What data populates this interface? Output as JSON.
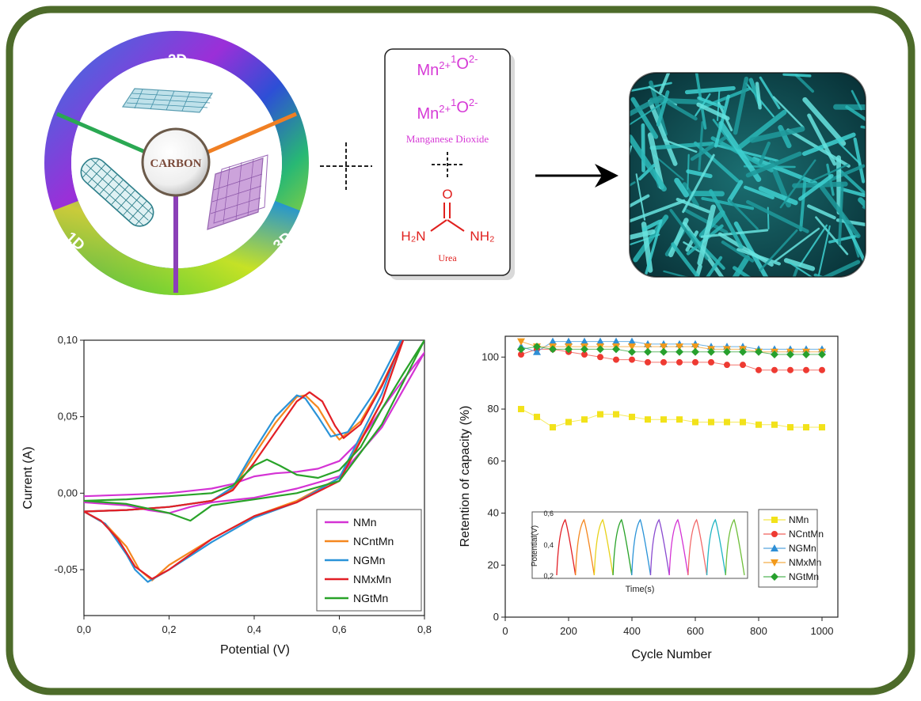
{
  "carbon_wheel": {
    "center_label": "CARBON",
    "segment_labels": [
      "2D",
      "1D",
      "3D"
    ]
  },
  "reagent_box": {
    "line1": {
      "base1": "Mn",
      "sup1": "2+",
      "pre2": "1",
      "base2": "O",
      "sup2": "2-"
    },
    "line2": {
      "base1": "Mn",
      "sup1": "2+",
      "pre2": "1",
      "base2": "O",
      "sup2": "2-"
    },
    "caption_mno2": "Manganese Dioxide",
    "urea": {
      "o": "O",
      "c": "C",
      "nh2_left": "H₂N",
      "nh2_right": "NH₂",
      "caption": "Urea"
    },
    "colors": {
      "mn": "#d63ad6",
      "urea": "#e0201e"
    }
  },
  "chart_data": [
    {
      "type": "line",
      "xlabel": "Potential (V)",
      "ylabel": "Current (A)",
      "xlim": [
        0.0,
        0.8
      ],
      "ylim": [
        -0.08,
        0.1
      ],
      "xticks": [
        "0,0",
        "0,2",
        "0,4",
        "0,6",
        "0,8"
      ],
      "yticks": [
        "-0,05",
        "0,00",
        "0,05",
        "0,10"
      ],
      "legend_position": "bottom-right",
      "series": [
        {
          "name": "NMn",
          "color": "#d433d4",
          "forward": [
            [
              0.0,
              -0.002
            ],
            [
              0.1,
              -0.001
            ],
            [
              0.2,
              0.0
            ],
            [
              0.3,
              0.003
            ],
            [
              0.35,
              0.006
            ],
            [
              0.4,
              0.011
            ],
            [
              0.45,
              0.013
            ],
            [
              0.5,
              0.014
            ],
            [
              0.55,
              0.016
            ],
            [
              0.6,
              0.021
            ],
            [
              0.65,
              0.035
            ],
            [
              0.7,
              0.055
            ],
            [
              0.75,
              0.074
            ],
            [
              0.8,
              0.092
            ]
          ],
          "reverse": [
            [
              0.8,
              0.092
            ],
            [
              0.7,
              0.043
            ],
            [
              0.6,
              0.011
            ],
            [
              0.5,
              0.003
            ],
            [
              0.4,
              -0.003
            ],
            [
              0.3,
              -0.006
            ],
            [
              0.25,
              -0.009
            ],
            [
              0.2,
              -0.013
            ],
            [
              0.15,
              -0.011
            ],
            [
              0.1,
              -0.008
            ],
            [
              0.0,
              -0.006
            ]
          ]
        },
        {
          "name": "NCntMn",
          "color": "#f5871f",
          "forward": [
            [
              0.0,
              -0.012
            ],
            [
              0.1,
              -0.011
            ],
            [
              0.2,
              -0.009
            ],
            [
              0.3,
              -0.005
            ],
            [
              0.35,
              0.003
            ],
            [
              0.4,
              0.025
            ],
            [
              0.45,
              0.046
            ],
            [
              0.5,
              0.063
            ],
            [
              0.52,
              0.064
            ],
            [
              0.55,
              0.056
            ],
            [
              0.58,
              0.042
            ],
            [
              0.6,
              0.035
            ],
            [
              0.65,
              0.047
            ],
            [
              0.7,
              0.071
            ],
            [
              0.75,
              0.1
            ]
          ],
          "reverse": [
            [
              0.75,
              0.1
            ],
            [
              0.7,
              0.06
            ],
            [
              0.6,
              0.01
            ],
            [
              0.5,
              -0.005
            ],
            [
              0.4,
              -0.015
            ],
            [
              0.3,
              -0.03
            ],
            [
              0.2,
              -0.047
            ],
            [
              0.16,
              -0.057
            ],
            [
              0.13,
              -0.05
            ],
            [
              0.1,
              -0.035
            ],
            [
              0.05,
              -0.02
            ],
            [
              0.0,
              -0.012
            ]
          ]
        },
        {
          "name": "NGMn",
          "color": "#2a93d8",
          "forward": [
            [
              0.0,
              -0.012
            ],
            [
              0.1,
              -0.011
            ],
            [
              0.2,
              -0.009
            ],
            [
              0.3,
              -0.005
            ],
            [
              0.35,
              0.004
            ],
            [
              0.4,
              0.028
            ],
            [
              0.45,
              0.05
            ],
            [
              0.5,
              0.064
            ],
            [
              0.52,
              0.062
            ],
            [
              0.55,
              0.05
            ],
            [
              0.58,
              0.037
            ],
            [
              0.62,
              0.04
            ],
            [
              0.68,
              0.065
            ],
            [
              0.75,
              0.103
            ]
          ],
          "reverse": [
            [
              0.75,
              0.103
            ],
            [
              0.7,
              0.065
            ],
            [
              0.6,
              0.01
            ],
            [
              0.5,
              -0.006
            ],
            [
              0.4,
              -0.016
            ],
            [
              0.3,
              -0.032
            ],
            [
              0.2,
              -0.05
            ],
            [
              0.15,
              -0.058
            ],
            [
              0.12,
              -0.05
            ],
            [
              0.1,
              -0.04
            ],
            [
              0.05,
              -0.02
            ],
            [
              0.0,
              -0.012
            ]
          ]
        },
        {
          "name": "NMxMn",
          "color": "#e21f26",
          "forward": [
            [
              0.0,
              -0.012
            ],
            [
              0.1,
              -0.011
            ],
            [
              0.2,
              -0.009
            ],
            [
              0.3,
              -0.005
            ],
            [
              0.35,
              0.002
            ],
            [
              0.4,
              0.02
            ],
            [
              0.45,
              0.04
            ],
            [
              0.5,
              0.06
            ],
            [
              0.53,
              0.066
            ],
            [
              0.56,
              0.06
            ],
            [
              0.59,
              0.044
            ],
            [
              0.61,
              0.036
            ],
            [
              0.65,
              0.045
            ],
            [
              0.7,
              0.07
            ],
            [
              0.75,
              0.1
            ]
          ],
          "reverse": [
            [
              0.75,
              0.1
            ],
            [
              0.7,
              0.06
            ],
            [
              0.6,
              0.008
            ],
            [
              0.5,
              -0.006
            ],
            [
              0.4,
              -0.015
            ],
            [
              0.3,
              -0.03
            ],
            [
              0.2,
              -0.05
            ],
            [
              0.16,
              -0.056
            ],
            [
              0.12,
              -0.048
            ],
            [
              0.08,
              -0.03
            ],
            [
              0.04,
              -0.018
            ],
            [
              0.0,
              -0.012
            ]
          ]
        },
        {
          "name": "NGtMn",
          "color": "#29a329",
          "forward": [
            [
              0.0,
              -0.005
            ],
            [
              0.1,
              -0.004
            ],
            [
              0.2,
              -0.002
            ],
            [
              0.3,
              0.0
            ],
            [
              0.35,
              0.005
            ],
            [
              0.4,
              0.018
            ],
            [
              0.43,
              0.022
            ],
            [
              0.46,
              0.018
            ],
            [
              0.5,
              0.012
            ],
            [
              0.55,
              0.01
            ],
            [
              0.6,
              0.015
            ],
            [
              0.65,
              0.03
            ],
            [
              0.7,
              0.055
            ],
            [
              0.75,
              0.078
            ],
            [
              0.8,
              0.1
            ]
          ],
          "reverse": [
            [
              0.8,
              0.1
            ],
            [
              0.7,
              0.045
            ],
            [
              0.6,
              0.008
            ],
            [
              0.5,
              0.0
            ],
            [
              0.4,
              -0.004
            ],
            [
              0.3,
              -0.008
            ],
            [
              0.25,
              -0.018
            ],
            [
              0.2,
              -0.013
            ],
            [
              0.1,
              -0.007
            ],
            [
              0.0,
              -0.005
            ]
          ]
        }
      ]
    },
    {
      "type": "scatter",
      "xlabel": "Cycle Number",
      "ylabel": "Retention of capacity (%)",
      "xlim": [
        0,
        1050
      ],
      "ylim": [
        0,
        108
      ],
      "xticks": [
        0,
        200,
        400,
        600,
        800,
        1000
      ],
      "yticks": [
        0,
        20,
        40,
        60,
        80,
        100
      ],
      "legend_position": "bottom-right",
      "x": [
        50,
        100,
        150,
        200,
        250,
        300,
        350,
        400,
        450,
        500,
        550,
        600,
        650,
        700,
        750,
        800,
        850,
        900,
        950,
        1000
      ],
      "series": [
        {
          "name": "NMn",
          "color": "#f2e21a",
          "marker": "square",
          "values": [
            80,
            77,
            73,
            75,
            76,
            78,
            78,
            77,
            76,
            76,
            76,
            75,
            75,
            75,
            75,
            74,
            74,
            73,
            73,
            73
          ]
        },
        {
          "name": "NCntMn",
          "color": "#ee3a32",
          "marker": "circle",
          "values": [
            101,
            103,
            103,
            102,
            101,
            100,
            99,
            99,
            98,
            98,
            98,
            98,
            98,
            97,
            97,
            95,
            95,
            95,
            95,
            95
          ]
        },
        {
          "name": "NGMn",
          "color": "#2e8fd6",
          "marker": "triangle-up",
          "values": [
            104,
            102,
            106,
            106,
            106,
            106,
            106,
            106,
            105,
            105,
            105,
            105,
            104,
            104,
            104,
            103,
            103,
            103,
            103,
            103
          ]
        },
        {
          "name": "NMxMn",
          "color": "#f29a1b",
          "marker": "triangle-down",
          "values": [
            106,
            104,
            104,
            104,
            104,
            104,
            104,
            104,
            104,
            104,
            104,
            104,
            103,
            103,
            103,
            102,
            102,
            102,
            102,
            102
          ]
        },
        {
          "name": "NGtMn",
          "color": "#27a02d",
          "marker": "diamond",
          "values": [
            103,
            104,
            103,
            103,
            103,
            103,
            103,
            102,
            102,
            102,
            102,
            102,
            102,
            102,
            102,
            102,
            101,
            101,
            101,
            101
          ]
        }
      ],
      "inset": {
        "xlabel": "Time(s)",
        "ylabel": "Potential(V)",
        "yticks": [
          "0,6",
          "0,4",
          "0,2"
        ],
        "cycles": 10,
        "colors": [
          "#e21f26",
          "#f5871f",
          "#e8d21a",
          "#29a329",
          "#2a93d8",
          "#8a4bd0",
          "#d433d4",
          "#f26a6a",
          "#1fb5c4",
          "#6fbf3a"
        ]
      }
    }
  ]
}
